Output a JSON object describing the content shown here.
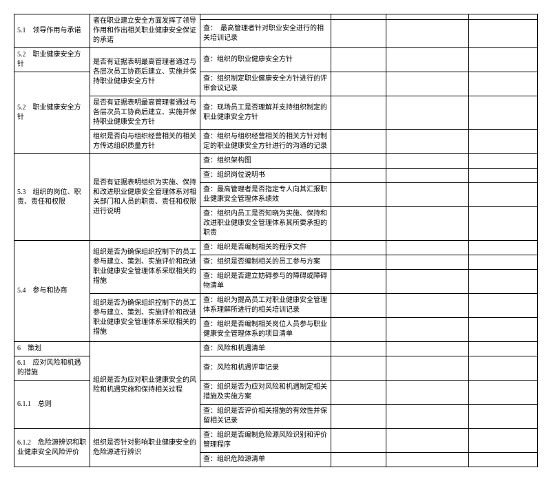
{
  "rows": [
    {
      "c1": "5.1　领导作用与承诺",
      "c2": "者在职业建立安全方面发挥了领导作用和作出相关职业健康安全保证的承诺",
      "c3": "",
      "c1rs": 2,
      "c2rs": 2
    },
    {
      "c3": "查：　最高管理者针对职业安全进行的相关培训记录"
    },
    {
      "c1": "5.2　职业健康安全方针",
      "c2": "是否有证据表明最高管理者通过与各层次员工协商后建立、实施并保持职业健康安全方针",
      "c3": "查：组织的职业健康安全方针",
      "c1rs": 1,
      "c2rs": 2
    },
    {
      "c1": "5.2　职业健康安全方针",
      "c3": "查：组织制定职业健康安全方针进行的评审会议记录",
      "c1rs": 3
    },
    {
      "c2": "是否有证据表明最高管理者通过与各层次员工协商后建立、实施并保持职业健康安全方针",
      "c3": "查：现场员工是否理解并支持组织制定的职业健康安全方针",
      "c2rs": 1
    },
    {
      "c2": "组织是否向与组织经营相关的相关方传达组织质量方针",
      "c3": "查：组织与组织经营相关的相关方针对制定的职业健康安全方针进行的沟通的记录",
      "c2rs": 1
    },
    {
      "c1": "5.3　组织的岗位、职责、责任和权限",
      "c2": "是否有证据表明组织为实施、保持和改进职业健康安全管理体系对相关部门和人员的职责、责任和权限进行说明",
      "c3": "查：组织架构图",
      "c1rs": 4,
      "c2rs": 4
    },
    {
      "c3": "查：组织岗位说明书"
    },
    {
      "c3": "查：最高管理者是否指定专人向其汇报职业健康安全管理体系绩效"
    },
    {
      "c3": "查：组织内员工是否知晓为实施、保持和改进职业健康安全管理体系其所要承担的职责"
    },
    {
      "c1": "5.4　参与和协商",
      "c2": "组织是否为确保组织控制下的员工参与建立、策划、实施评价和改进职业健康安全管理体系采取相关的措施",
      "c3": "查：组织是否编制相关的程序文件",
      "c1rs": 5,
      "c2rs": 3
    },
    {
      "c3": "查：组织是否编制相关的员工参与方案"
    },
    {
      "c3": "查：组织是否建立妨碍参与的障碍或障碍物清单"
    },
    {
      "c2": "组织是否为确保组织控制下的员工参与建立、策划、实施评价和改进职业健康安全管理体系采取相关的措施",
      "c3": "查：组织为提高员工对职业健康安全管理体系理解所进行的相关培训记录",
      "c2rs": 2
    },
    {
      "c3": "查：组织是否编制相关岗位人员参与职业健康安全管理体系的项目清单"
    },
    {
      "c1": "6　策划",
      "c2": "组织是否为应对职业健康安全的风险和机遇实施和保持相关过程",
      "c3": "查：风险和机遇清单",
      "c1rs": 1,
      "c2rs": 4
    },
    {
      "c1": "6.1　应对风险和机遇的措施",
      "c3": "查：风险和机遇评审记录",
      "c1rs": 1
    },
    {
      "c1": "6.1.1　总则",
      "c3": "查：组织是否为应对风险和机遇制定相关措施及实施方案",
      "c1rs": 2
    },
    {
      "c3": "查：组织是否评价相关措施的有效性并保留相关记录"
    },
    {
      "c1": "6.1.2　危险源辨识和职业健康安全风险评价",
      "c2": "组织是否针对影响职业健康安全的危险源进行辨识",
      "c3": "查：组织是否编制危险源风险识别和评价管理程序",
      "c1rs": 2,
      "c2rs": 2
    },
    {
      "c3": "查：组织危险源清单"
    }
  ]
}
